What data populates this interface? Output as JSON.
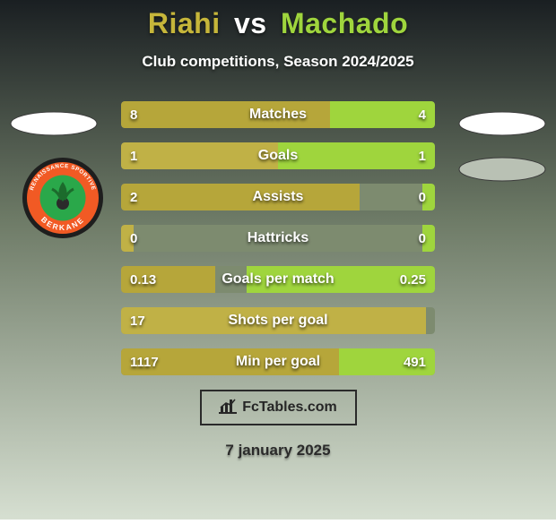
{
  "background": {
    "top_color": "#1a1f22",
    "mid_color": "#6d7a66",
    "bottom_color": "#d6dfd1",
    "gradient_stops": [
      0,
      42,
      100
    ]
  },
  "title": {
    "player1": "Riahi",
    "vs": "vs",
    "player2": "Machado",
    "p1_color": "#c6b63a",
    "vs_color": "#ffffff",
    "p2_color": "#9fd53d"
  },
  "subtitle": "Club competitions, Season 2024/2025",
  "bar_colors": {
    "track": "#7d8b6f",
    "fill_left": "#b6a63a",
    "fill_left_alt": "#c0b146",
    "fill_right": "#9fd53d"
  },
  "rows": [
    {
      "label": "Matches",
      "left": "8",
      "right": "4",
      "left_pct": 66.7,
      "right_pct": 33.3
    },
    {
      "label": "Goals",
      "left": "1",
      "right": "1",
      "left_pct": 50.0,
      "right_pct": 50.0
    },
    {
      "label": "Assists",
      "left": "2",
      "right": "0",
      "left_pct": 76.0,
      "right_pct": 4.0
    },
    {
      "label": "Hattricks",
      "left": "0",
      "right": "0",
      "left_pct": 4.0,
      "right_pct": 4.0
    },
    {
      "label": "Goals per match",
      "left": "0.13",
      "right": "0.25",
      "left_pct": 30.0,
      "right_pct": 60.0
    },
    {
      "label": "Shots per goal",
      "left": "17",
      "right": "",
      "left_pct": 97.0,
      "right_pct": 0.0
    },
    {
      "label": "Min per goal",
      "left": "1117",
      "right": "491",
      "left_pct": 69.5,
      "right_pct": 30.5
    }
  ],
  "side_badges": {
    "fill": "#ffffff",
    "stroke": "#3a3a3a"
  },
  "club_emblem": {
    "outer_ring": "#1e1e1e",
    "inner_ring": "#f15a24",
    "field": "#2aa84a",
    "text_color": "#ffffff",
    "top_text": "RENAISSANCE SPORTIVE",
    "bottom_text": "BERKANE"
  },
  "brand": {
    "text": "FcTables.com",
    "text_color": "#262626",
    "border_color": "#2a2a2a"
  },
  "date": "7 january 2025"
}
